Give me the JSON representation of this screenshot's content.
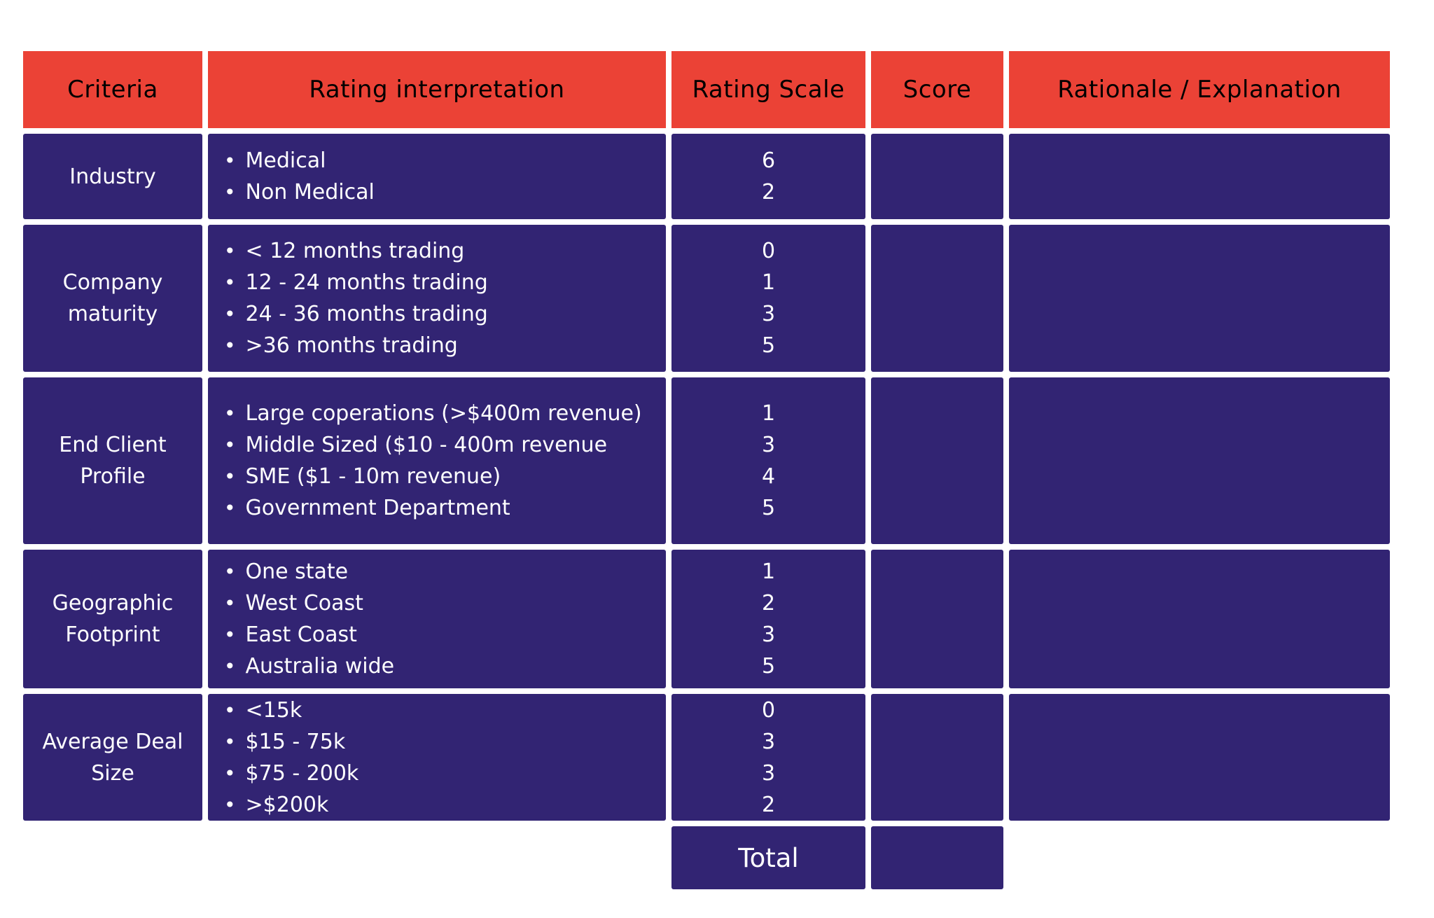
{
  "colors": {
    "header_bg": "#eb4236",
    "cell_bg": "#322473",
    "text": "#ffffff",
    "page_bg": "#ffffff"
  },
  "table": {
    "headers": [
      {
        "label": "Criteria"
      },
      {
        "label": "Rating interpretation"
      },
      {
        "label": "Rating Scale"
      },
      {
        "label": "Score"
      },
      {
        "label": "Rationale / Explanation"
      }
    ],
    "rows": [
      {
        "criteria": "Industry",
        "items": [
          "Medical",
          "Non Medical"
        ],
        "scale": [
          6,
          2
        ],
        "score": "",
        "rationale": ""
      },
      {
        "criteria": "Company maturity",
        "items": [
          "< 12 months trading",
          "12 - 24 months trading",
          "24 - 36 months trading",
          ">36 months trading"
        ],
        "scale": [
          0,
          1,
          3,
          5
        ],
        "score": "",
        "rationale": ""
      },
      {
        "criteria": "End Client Profile",
        "items": [
          "Large coperations (>$400m revenue)",
          "Middle Sized ($10 - 400m revenue",
          "SME ($1 - 10m revenue)",
          "Government Department"
        ],
        "scale": [
          1,
          3,
          4,
          5
        ],
        "score": "",
        "rationale": ""
      },
      {
        "criteria": "Geographic Footprint",
        "items": [
          "One state",
          "West Coast",
          "East Coast",
          "Australia wide"
        ],
        "scale": [
          1,
          2,
          3,
          5
        ],
        "score": "",
        "rationale": ""
      },
      {
        "criteria": "Average Deal Size",
        "items": [
          "<15k",
          "$15 - 75k",
          "$75 - 200k",
          ">$200k"
        ],
        "scale": [
          0,
          3,
          3,
          2
        ],
        "score": "",
        "rationale": ""
      }
    ],
    "footer": {
      "total_label": "Total",
      "total_score": ""
    }
  }
}
